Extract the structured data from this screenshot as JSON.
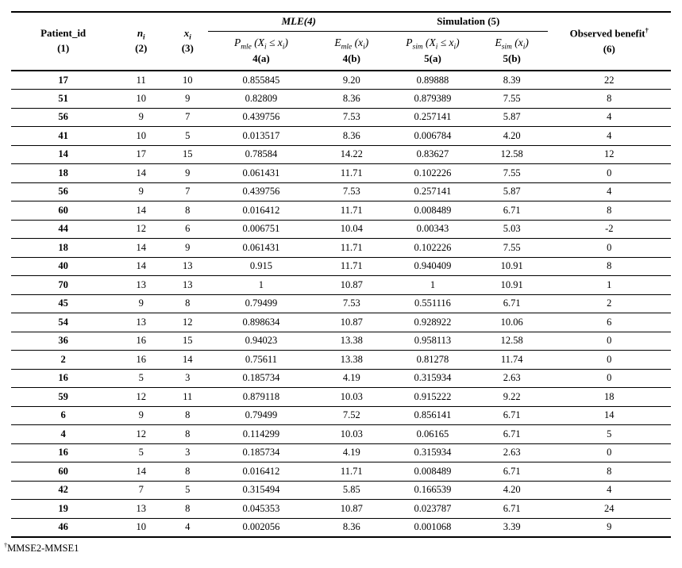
{
  "page": {
    "background": "#ffffff",
    "text_color": "#000000",
    "rule_color": "#000000"
  },
  "table": {
    "group_headers": {
      "mle": "MLE(4)",
      "simulation": "Simulation (5)"
    },
    "columns": [
      {
        "key": "patient_id",
        "line1": "Patient_id",
        "line2": "(1)"
      },
      {
        "key": "n_i",
        "line1": "n_{i}",
        "line2": "(2)"
      },
      {
        "key": "x_i",
        "line1": "x_{i}",
        "line2": "(3)"
      },
      {
        "key": "p_mle",
        "line1": "P_{mle} (X_{i} ≤ x_{i})",
        "line2": "4(a)"
      },
      {
        "key": "e_mle",
        "line1": "E_{mle} (x_{i})",
        "line2": "4(b)"
      },
      {
        "key": "p_sim",
        "line1": "P_{sim} (X_{i} ≤ x_{i})",
        "line2": "5(a)"
      },
      {
        "key": "e_sim",
        "line1": "E_{sim} (x_{i})",
        "line2": "5(b)"
      },
      {
        "key": "observed_benefit",
        "line1": "Observed benefit^{†}",
        "line2": "(6)"
      }
    ],
    "rows": [
      [
        "17",
        "11",
        "10",
        "0.855845",
        "9.20",
        "0.89888",
        "8.39",
        "22"
      ],
      [
        "51",
        "10",
        "9",
        "0.82809",
        "8.36",
        "0.879389",
        "7.55",
        "8"
      ],
      [
        "56",
        "9",
        "7",
        "0.439756",
        "7.53",
        "0.257141",
        "5.87",
        "4"
      ],
      [
        "41",
        "10",
        "5",
        "0.013517",
        "8.36",
        "0.006784",
        "4.20",
        "4"
      ],
      [
        "14",
        "17",
        "15",
        "0.78584",
        "14.22",
        "0.83627",
        "12.58",
        "12"
      ],
      [
        "18",
        "14",
        "9",
        "0.061431",
        "11.71",
        "0.102226",
        "7.55",
        "0"
      ],
      [
        "56",
        "9",
        "7",
        "0.439756",
        "7.53",
        "0.257141",
        "5.87",
        "4"
      ],
      [
        "60",
        "14",
        "8",
        "0.016412",
        "11.71",
        "0.008489",
        "6.71",
        "8"
      ],
      [
        "44",
        "12",
        "6",
        "0.006751",
        "10.04",
        "0.00343",
        "5.03",
        "-2"
      ],
      [
        "18",
        "14",
        "9",
        "0.061431",
        "11.71",
        "0.102226",
        "7.55",
        "0"
      ],
      [
        "40",
        "14",
        "13",
        "0.915",
        "11.71",
        "0.940409",
        "10.91",
        "8"
      ],
      [
        "70",
        "13",
        "13",
        "1",
        "10.87",
        "1",
        "10.91",
        "1"
      ],
      [
        "45",
        "9",
        "8",
        "0.79499",
        "7.53",
        "0.551116",
        "6.71",
        "2"
      ],
      [
        "54",
        "13",
        "12",
        "0.898634",
        "10.87",
        "0.928922",
        "10.06",
        "6"
      ],
      [
        "36",
        "16",
        "15",
        "0.94023",
        "13.38",
        "0.958113",
        "12.58",
        "0"
      ],
      [
        "2",
        "16",
        "14",
        "0.75611",
        "13.38",
        "0.81278",
        "11.74",
        "0"
      ],
      [
        "16",
        "5",
        "3",
        "0.185734",
        "4.19",
        "0.315934",
        "2.63",
        "0"
      ],
      [
        "59",
        "12",
        "11",
        "0.879118",
        "10.03",
        "0.915222",
        "9.22",
        "18"
      ],
      [
        "6",
        "9",
        "8",
        "0.79499",
        "7.52",
        "0.856141",
        "6.71",
        "14"
      ],
      [
        "4",
        "12",
        "8",
        "0.114299",
        "10.03",
        "0.06165",
        "6.71",
        "5"
      ],
      [
        "16",
        "5",
        "3",
        "0.185734",
        "4.19",
        "0.315934",
        "2.63",
        "0"
      ],
      [
        "60",
        "14",
        "8",
        "0.016412",
        "11.71",
        "0.008489",
        "6.71",
        "8"
      ],
      [
        "42",
        "7",
        "5",
        "0.315494",
        "5.85",
        "0.166539",
        "4.20",
        "4"
      ],
      [
        "19",
        "13",
        "8",
        "0.045353",
        "10.87",
        "0.023787",
        "6.71",
        "24"
      ],
      [
        "46",
        "10",
        "4",
        "0.002056",
        "8.36",
        "0.001068",
        "3.39",
        "9"
      ]
    ]
  },
  "footnote": "^{†}MMSE2-MMSE1"
}
